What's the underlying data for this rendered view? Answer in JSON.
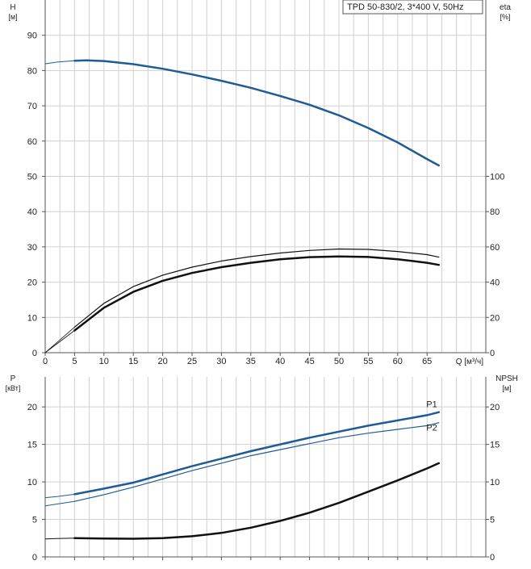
{
  "colors": {
    "blue": "#1f5b94",
    "black": "#111111",
    "grid": "#d0d0d0",
    "axis": "#555555"
  },
  "chart_data": [
    {
      "type": "line",
      "panel": "head-efficiency",
      "title": "TPD 50-830/2, 3*400 V, 50Hz",
      "xlabel": "Q [м³/ч]",
      "x_ticks": [
        0,
        5,
        10,
        15,
        20,
        25,
        30,
        35,
        40,
        45,
        50,
        55,
        60,
        65
      ],
      "xlim": [
        0,
        75
      ],
      "grid": true,
      "left_axis": {
        "label_line1": "H",
        "label_line2": "[м]",
        "ylim": [
          0,
          100
        ],
        "ticks": [
          0,
          10,
          20,
          30,
          40,
          50,
          60,
          70,
          80,
          90
        ]
      },
      "right_axis": {
        "label_line1": "eta",
        "label_line2": "[%]",
        "ylim": [
          0,
          200
        ],
        "ticks": [
          0,
          20,
          40,
          60,
          80,
          100
        ]
      },
      "series": [
        {
          "key": "H",
          "axis": "left",
          "color": "#1f5b94",
          "width": 2.5,
          "x": [
            5,
            7,
            10,
            15,
            20,
            25,
            30,
            35,
            40,
            45,
            50,
            55,
            60,
            65,
            67
          ],
          "y": [
            82.8,
            82.9,
            82.7,
            81.8,
            80.5,
            78.9,
            77.1,
            75.1,
            72.8,
            70.3,
            67.3,
            63.7,
            59.6,
            54.9,
            53.1
          ]
        },
        {
          "key": "H-low",
          "axis": "left",
          "color": "#1f5b94",
          "width": 1,
          "x": [
            0,
            2,
            5
          ],
          "y": [
            81.9,
            82.4,
            82.8
          ]
        },
        {
          "key": "eta-upper",
          "axis": "right",
          "color": "#111111",
          "width": 1.2,
          "x": [
            5,
            10,
            15,
            20,
            25,
            30,
            35,
            40,
            45,
            50,
            55,
            60,
            65,
            67
          ],
          "y": [
            14.5,
            28,
            37.5,
            44,
            48.5,
            52,
            54.5,
            56.5,
            58,
            58.8,
            58.6,
            57.4,
            55.6,
            54.2
          ]
        },
        {
          "key": "eta-lower",
          "axis": "right",
          "color": "#111111",
          "width": 2.5,
          "x": [
            5,
            10,
            15,
            20,
            25,
            30,
            35,
            40,
            45,
            50,
            55,
            60,
            65,
            67
          ],
          "y": [
            12.6,
            25.5,
            34.5,
            40.8,
            45.2,
            48.5,
            51,
            53,
            54.2,
            54.6,
            54.3,
            53,
            51,
            49.8
          ]
        },
        {
          "key": "eta-upper-low",
          "axis": "right",
          "color": "#111111",
          "width": 0.8,
          "x": [
            0,
            5
          ],
          "y": [
            0,
            14.5
          ]
        },
        {
          "key": "eta-lower-low",
          "axis": "right",
          "color": "#111111",
          "width": 0.8,
          "x": [
            0,
            5
          ],
          "y": [
            0,
            12.6
          ]
        }
      ]
    },
    {
      "type": "line",
      "panel": "power-npsh",
      "x_ticks": [
        0,
        5,
        10,
        15,
        20,
        25,
        30,
        35,
        40,
        45,
        50,
        55,
        60,
        65
      ],
      "xlim": [
        0,
        75
      ],
      "grid": true,
      "left_axis": {
        "label_line1": "P",
        "label_line2": "[кВт]",
        "ylim": [
          0,
          24
        ],
        "ticks": [
          0,
          5,
          10,
          15,
          20
        ]
      },
      "right_axis": {
        "label_line1": "NPSH",
        "label_line2": "[м]",
        "ylim": [
          0,
          24
        ],
        "ticks": [
          0,
          5,
          10,
          15,
          20
        ]
      },
      "series": [
        {
          "key": "P1",
          "name": "P1",
          "axis": "left",
          "color": "#1f5b94",
          "width": 2.5,
          "x": [
            5,
            10,
            15,
            20,
            25,
            30,
            35,
            40,
            45,
            50,
            55,
            60,
            65,
            67
          ],
          "y": [
            8.35,
            9.1,
            9.9,
            11,
            12.1,
            13.1,
            14.1,
            15,
            15.9,
            16.7,
            17.5,
            18.2,
            18.9,
            19.3
          ]
        },
        {
          "key": "P1-low",
          "axis": "left",
          "color": "#1f5b94",
          "width": 1,
          "x": [
            0,
            2,
            5
          ],
          "y": [
            7.9,
            8.05,
            8.35
          ]
        },
        {
          "key": "P2",
          "name": "P2",
          "axis": "left",
          "color": "#1f5b94",
          "width": 1.2,
          "x": [
            5,
            10,
            15,
            20,
            25,
            30,
            35,
            40,
            45,
            50,
            55,
            60,
            65,
            67
          ],
          "y": [
            7.4,
            8.3,
            9.3,
            10.4,
            11.5,
            12.5,
            13.5,
            14.3,
            15.1,
            15.9,
            16.5,
            17,
            17.5,
            17.9
          ]
        },
        {
          "key": "P2-low",
          "axis": "left",
          "color": "#1f5b94",
          "width": 1,
          "x": [
            0,
            2,
            5
          ],
          "y": [
            6.8,
            7.05,
            7.4
          ]
        },
        {
          "key": "NPSH",
          "axis": "right",
          "color": "#111111",
          "width": 2.5,
          "x": [
            5,
            10,
            15,
            20,
            25,
            30,
            35,
            40,
            45,
            50,
            55,
            60,
            65,
            67
          ],
          "y": [
            2.5,
            2.45,
            2.42,
            2.5,
            2.75,
            3.2,
            3.9,
            4.8,
            5.9,
            7.2,
            8.7,
            10.2,
            11.8,
            12.5
          ]
        },
        {
          "key": "NPSH-low",
          "axis": "right",
          "color": "#111111",
          "width": 1,
          "x": [
            0,
            2,
            5
          ],
          "y": [
            2.4,
            2.45,
            2.5
          ]
        }
      ]
    }
  ]
}
